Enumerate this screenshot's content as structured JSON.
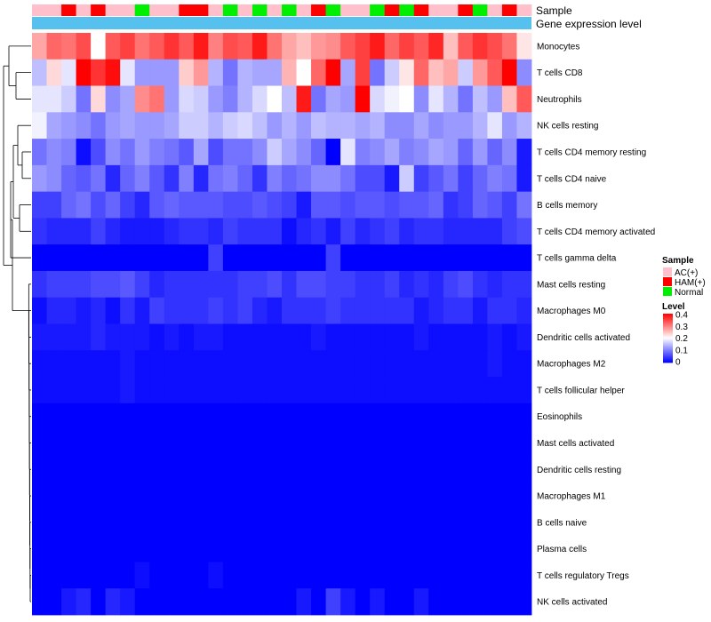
{
  "chart_data": {
    "type": "heatmap",
    "title": "",
    "annotation_labels": {
      "sample": "Sample",
      "gene_expression": "Gene expression level"
    },
    "sample_groups": [
      "AC(+)",
      "AC(+)",
      "HAM(+)",
      "AC(+)",
      "HAM(+)",
      "AC(+)",
      "AC(+)",
      "Normal",
      "AC(+)",
      "AC(+)",
      "HAM(+)",
      "HAM(+)",
      "AC(+)",
      "Normal",
      "AC(+)",
      "Normal",
      "AC(+)",
      "Normal",
      "AC(+)",
      "HAM(+)",
      "Normal",
      "AC(+)",
      "AC(+)",
      "Normal",
      "HAM(+)",
      "Normal",
      "HAM(+)",
      "AC(+)",
      "AC(+)",
      "HAM(+)",
      "Normal",
      "AC(+)",
      "HAM(+)",
      "AC(+)"
    ],
    "gene_expression_color": "#56c1ee",
    "rows": [
      "Monocytes",
      "T cells CD8",
      "Neutrophils",
      "NK cells resting",
      "T cells CD4 memory resting",
      "T cells CD4 naive",
      "B cells memory",
      "T cells CD4 memory activated",
      "T cells gamma delta",
      "Mast cells resting",
      "Macrophages M0",
      "Dendritic cells activated",
      "Macrophages M2",
      "T cells follicular helper",
      "Eosinophils",
      "Mast cells activated",
      "Dendritic cells resting",
      "Macrophages M1",
      "B cells naive",
      "Plasma cells",
      "T cells regulatory  Tregs",
      "NK cells activated"
    ],
    "values": [
      [
        0.27,
        0.32,
        0.31,
        0.34,
        0.2,
        0.33,
        0.35,
        0.31,
        0.33,
        0.36,
        0.33,
        0.38,
        0.3,
        0.34,
        0.33,
        0.38,
        0.31,
        0.27,
        0.25,
        0.28,
        0.29,
        0.33,
        0.35,
        0.38,
        0.32,
        0.35,
        0.33,
        0.37,
        0.25,
        0.33,
        0.36,
        0.34,
        0.31,
        0.22
      ],
      [
        0.15,
        0.23,
        0.18,
        0.4,
        0.36,
        0.39,
        0.18,
        0.12,
        0.12,
        0.12,
        0.24,
        0.28,
        0.14,
        0.09,
        0.14,
        0.13,
        0.13,
        0.26,
        0.2,
        0.32,
        0.4,
        0.13,
        0.35,
        0.09,
        0.16,
        0.22,
        0.32,
        0.25,
        0.27,
        0.16,
        0.28,
        0.33,
        0.4,
        0.11
      ],
      [
        0.18,
        0.18,
        0.16,
        0.09,
        0.23,
        0.11,
        0.13,
        0.29,
        0.31,
        0.12,
        0.17,
        0.16,
        0.12,
        0.1,
        0.14,
        0.17,
        0.2,
        0.15,
        0.38,
        0.09,
        0.13,
        0.12,
        0.4,
        0.17,
        0.19,
        0.2,
        0.11,
        0.18,
        0.14,
        0.09,
        0.15,
        0.12,
        0.25,
        0.33
      ],
      [
        0.19,
        0.13,
        0.12,
        0.11,
        0.09,
        0.12,
        0.13,
        0.12,
        0.12,
        0.13,
        0.16,
        0.16,
        0.14,
        0.16,
        0.17,
        0.15,
        0.12,
        0.14,
        0.12,
        0.15,
        0.14,
        0.14,
        0.13,
        0.14,
        0.11,
        0.11,
        0.13,
        0.11,
        0.12,
        0.12,
        0.14,
        0.18,
        0.12,
        0.14
      ],
      [
        0.09,
        0.11,
        0.1,
        0.01,
        0.06,
        0.11,
        0.09,
        0.12,
        0.1,
        0.09,
        0.07,
        0.13,
        0.06,
        0.09,
        0.09,
        0.11,
        0.16,
        0.13,
        0.11,
        0.08,
        0.0,
        0.18,
        0.1,
        0.11,
        0.13,
        0.1,
        0.11,
        0.13,
        0.12,
        0.08,
        0.12,
        0.08,
        0.11,
        0.02
      ],
      [
        0.12,
        0.11,
        0.08,
        0.07,
        0.09,
        0.03,
        0.08,
        0.1,
        0.07,
        0.04,
        0.1,
        0.03,
        0.09,
        0.1,
        0.08,
        0.04,
        0.1,
        0.08,
        0.09,
        0.11,
        0.11,
        0.09,
        0.06,
        0.06,
        0.02,
        0.16,
        0.05,
        0.07,
        0.09,
        0.05,
        0.08,
        0.1,
        0.09,
        0.02
      ],
      [
        0.05,
        0.05,
        0.08,
        0.09,
        0.06,
        0.08,
        0.05,
        0.03,
        0.07,
        0.08,
        0.07,
        0.07,
        0.07,
        0.06,
        0.06,
        0.07,
        0.06,
        0.05,
        0.02,
        0.07,
        0.07,
        0.06,
        0.07,
        0.07,
        0.06,
        0.07,
        0.07,
        0.08,
        0.04,
        0.05,
        0.08,
        0.07,
        0.05,
        0.09
      ],
      [
        0.04,
        0.03,
        0.03,
        0.03,
        0.05,
        0.03,
        0.02,
        0.02,
        0.02,
        0.03,
        0.04,
        0.04,
        0.03,
        0.05,
        0.04,
        0.04,
        0.04,
        0.01,
        0.03,
        0.04,
        0.02,
        0.05,
        0.03,
        0.04,
        0.05,
        0.03,
        0.04,
        0.04,
        0.03,
        0.03,
        0.03,
        0.03,
        0.05,
        0.06
      ],
      [
        0.0,
        0.0,
        0.0,
        0.0,
        0.0,
        0.0,
        0.0,
        0.0,
        0.0,
        0.0,
        0.0,
        0.0,
        0.05,
        0.0,
        0.0,
        0.0,
        0.0,
        0.0,
        0.0,
        0.0,
        0.05,
        0.0,
        0.0,
        0.0,
        0.0,
        0.0,
        0.0,
        0.0,
        0.0,
        0.0,
        0.0,
        0.0,
        0.0,
        0.0
      ],
      [
        0.04,
        0.05,
        0.05,
        0.05,
        0.06,
        0.06,
        0.07,
        0.05,
        0.03,
        0.04,
        0.04,
        0.04,
        0.04,
        0.04,
        0.05,
        0.05,
        0.06,
        0.04,
        0.06,
        0.06,
        0.05,
        0.05,
        0.04,
        0.04,
        0.05,
        0.03,
        0.04,
        0.03,
        0.05,
        0.06,
        0.04,
        0.03,
        0.04,
        0.04
      ],
      [
        0.01,
        0.03,
        0.03,
        0.02,
        0.03,
        0.01,
        0.04,
        0.02,
        0.05,
        0.04,
        0.04,
        0.04,
        0.05,
        0.04,
        0.05,
        0.03,
        0.02,
        0.04,
        0.04,
        0.04,
        0.05,
        0.04,
        0.04,
        0.04,
        0.04,
        0.04,
        0.02,
        0.03,
        0.04,
        0.04,
        0.02,
        0.04,
        0.04,
        0.03
      ],
      [
        0.02,
        0.02,
        0.02,
        0.02,
        0.03,
        0.02,
        0.02,
        0.02,
        0.01,
        0.02,
        0.01,
        0.02,
        0.02,
        0.01,
        0.01,
        0.01,
        0.01,
        0.01,
        0.01,
        0.02,
        0.01,
        0.01,
        0.01,
        0.01,
        0.01,
        0.01,
        0.02,
        0.01,
        0.01,
        0.01,
        0.01,
        0.02,
        0.01,
        0.02
      ],
      [
        0.01,
        0.01,
        0.01,
        0.01,
        0.01,
        0.01,
        0.02,
        0.01,
        0.01,
        0.01,
        0.01,
        0.01,
        0.01,
        0.01,
        0.01,
        0.01,
        0.01,
        0.01,
        0.01,
        0.01,
        0.01,
        0.01,
        0.01,
        0.01,
        0.01,
        0.01,
        0.01,
        0.01,
        0.01,
        0.01,
        0.01,
        0.02,
        0.01,
        0.01
      ],
      [
        0.01,
        0.01,
        0.01,
        0.01,
        0.01,
        0.01,
        0.02,
        0.01,
        0.01,
        0.01,
        0.01,
        0.01,
        0.01,
        0.01,
        0.01,
        0.01,
        0.01,
        0.01,
        0.01,
        0.01,
        0.01,
        0.01,
        0.01,
        0.01,
        0.01,
        0.01,
        0.01,
        0.01,
        0.01,
        0.01,
        0.01,
        0.01,
        0.01,
        0.01
      ],
      [
        0.0,
        0.0,
        0.0,
        0.0,
        0.0,
        0.0,
        0.0,
        0.0,
        0.0,
        0.0,
        0.0,
        0.0,
        0.0,
        0.0,
        0.0,
        0.0,
        0.0,
        0.0,
        0.0,
        0.0,
        0.0,
        0.0,
        0.0,
        0.0,
        0.0,
        0.0,
        0.0,
        0.0,
        0.0,
        0.0,
        0.0,
        0.0,
        0.0,
        0.0
      ],
      [
        0.0,
        0.0,
        0.0,
        0.0,
        0.0,
        0.0,
        0.0,
        0.0,
        0.0,
        0.0,
        0.0,
        0.0,
        0.0,
        0.0,
        0.0,
        0.0,
        0.0,
        0.0,
        0.0,
        0.0,
        0.0,
        0.0,
        0.0,
        0.0,
        0.0,
        0.0,
        0.0,
        0.0,
        0.0,
        0.0,
        0.0,
        0.0,
        0.0,
        0.0
      ],
      [
        0.0,
        0.0,
        0.0,
        0.0,
        0.0,
        0.0,
        0.0,
        0.0,
        0.0,
        0.0,
        0.0,
        0.0,
        0.0,
        0.0,
        0.0,
        0.0,
        0.0,
        0.0,
        0.0,
        0.0,
        0.0,
        0.0,
        0.0,
        0.0,
        0.0,
        0.0,
        0.0,
        0.0,
        0.0,
        0.0,
        0.0,
        0.0,
        0.0,
        0.0
      ],
      [
        0.0,
        0.0,
        0.0,
        0.0,
        0.0,
        0.0,
        0.0,
        0.0,
        0.0,
        0.0,
        0.0,
        0.0,
        0.0,
        0.0,
        0.0,
        0.0,
        0.0,
        0.0,
        0.0,
        0.0,
        0.0,
        0.0,
        0.0,
        0.0,
        0.0,
        0.0,
        0.0,
        0.0,
        0.0,
        0.0,
        0.0,
        0.0,
        0.0,
        0.0
      ],
      [
        0.0,
        0.0,
        0.0,
        0.0,
        0.0,
        0.0,
        0.0,
        0.0,
        0.0,
        0.0,
        0.0,
        0.0,
        0.0,
        0.0,
        0.0,
        0.0,
        0.0,
        0.0,
        0.0,
        0.0,
        0.0,
        0.0,
        0.0,
        0.0,
        0.0,
        0.0,
        0.0,
        0.0,
        0.0,
        0.0,
        0.0,
        0.0,
        0.0,
        0.0
      ],
      [
        0.0,
        0.0,
        0.0,
        0.0,
        0.0,
        0.0,
        0.0,
        0.0,
        0.0,
        0.0,
        0.0,
        0.0,
        0.0,
        0.0,
        0.0,
        0.0,
        0.0,
        0.0,
        0.0,
        0.0,
        0.0,
        0.0,
        0.0,
        0.0,
        0.0,
        0.0,
        0.0,
        0.0,
        0.0,
        0.0,
        0.0,
        0.0,
        0.0,
        0.0
      ],
      [
        0.0,
        0.0,
        0.0,
        0.0,
        0.0,
        0.0,
        0.0,
        0.01,
        0.0,
        0.0,
        0.0,
        0.0,
        0.01,
        0.0,
        0.0,
        0.0,
        0.0,
        0.0,
        0.0,
        0.0,
        0.0,
        0.0,
        0.0,
        0.0,
        0.0,
        0.0,
        0.0,
        0.0,
        0.0,
        0.0,
        0.0,
        0.0,
        0.0,
        0.0
      ],
      [
        0.0,
        0.0,
        0.02,
        0.03,
        0.0,
        0.03,
        0.02,
        0.0,
        0.0,
        0.0,
        0.0,
        0.0,
        0.0,
        0.0,
        0.0,
        0.0,
        0.0,
        0.0,
        0.02,
        0.0,
        0.05,
        0.02,
        0.0,
        0.02,
        0.0,
        0.0,
        0.02,
        0.0,
        0.0,
        0.0,
        0.0,
        0.0,
        0.0,
        0.0
      ]
    ],
    "legend": {
      "sample_title": "Sample",
      "sample_entries": [
        {
          "label": "AC(+)",
          "color": "#ffc0cb"
        },
        {
          "label": "HAM(+)",
          "color": "#ff0000"
        },
        {
          "label": "Normal",
          "color": "#00ee00"
        }
      ],
      "level_title": "Level",
      "level_ticks": [
        "0.4",
        "0.3",
        "0.2",
        "0.1",
        "0"
      ],
      "level_range": [
        0,
        0.4
      ],
      "placement": "right"
    },
    "colors": {
      "low": "#0000ff",
      "mid": "#ffffff",
      "high": "#ff0000"
    }
  }
}
